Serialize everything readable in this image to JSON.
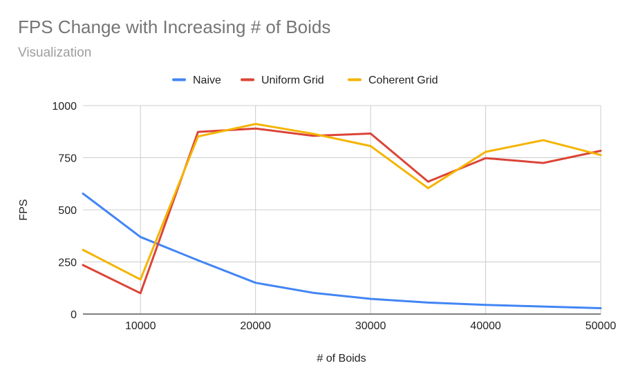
{
  "chart_data": {
    "type": "line",
    "title": "FPS Change with Increasing # of Boids",
    "subtitle": "Visualization",
    "xlabel": "# of Boids",
    "ylabel": "FPS",
    "x": [
      5000,
      10000,
      15000,
      20000,
      25000,
      30000,
      35000,
      40000,
      45000,
      50000
    ],
    "xlim": [
      5000,
      50000
    ],
    "ylim": [
      0,
      1000
    ],
    "xticks": [
      10000,
      20000,
      30000,
      40000,
      50000
    ],
    "yticks": [
      0,
      250,
      500,
      750,
      1000
    ],
    "grid": true,
    "legend_position": "top",
    "series": [
      {
        "name": "Naive",
        "color": "#4285f4",
        "values": [
          578,
          370,
          258,
          150,
          102,
          73,
          55,
          44,
          36,
          28
        ]
      },
      {
        "name": "Uniform Grid",
        "color": "#db4437",
        "values": [
          235,
          100,
          874,
          890,
          855,
          866,
          635,
          748,
          725,
          783
        ]
      },
      {
        "name": "Coherent Grid",
        "color": "#f4b400",
        "values": [
          308,
          166,
          852,
          912,
          865,
          806,
          604,
          778,
          834,
          763
        ]
      }
    ]
  }
}
